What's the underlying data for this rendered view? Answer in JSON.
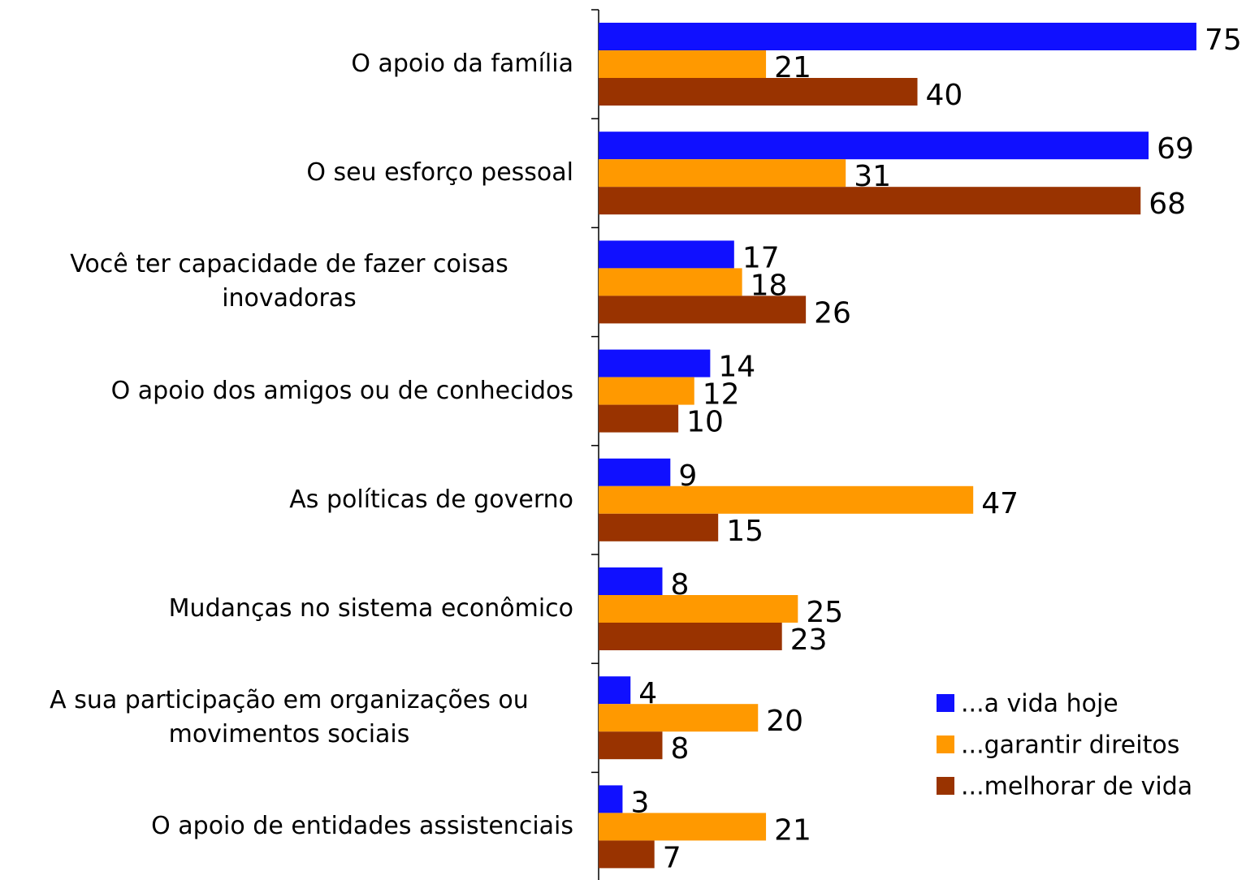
{
  "chart_data": {
    "type": "bar",
    "orientation": "horizontal",
    "categories": [
      "O apoio da família",
      "O seu esforço pessoal",
      "Você ter capacidade de fazer coisas inovadoras",
      "O apoio dos amigos ou de conhecidos",
      "As políticas de governo",
      "Mudanças no sistema econômico",
      "A sua participação em organizações ou movimentos sociais",
      "O apoio de entidades assistenciais"
    ],
    "series": [
      {
        "name": "...a vida hoje",
        "color": "#1010ff",
        "values": [
          75,
          69,
          17,
          14,
          9,
          8,
          4,
          3
        ]
      },
      {
        "name": "...garantir direitos",
        "color": "#ff9900",
        "values": [
          21,
          31,
          18,
          12,
          47,
          25,
          20,
          21
        ]
      },
      {
        "name": "...melhorar de vida",
        "color": "#993300",
        "values": [
          40,
          68,
          26,
          10,
          15,
          23,
          8,
          7
        ]
      }
    ],
    "xlim": [
      0,
      80
    ],
    "legend": "lower right"
  }
}
